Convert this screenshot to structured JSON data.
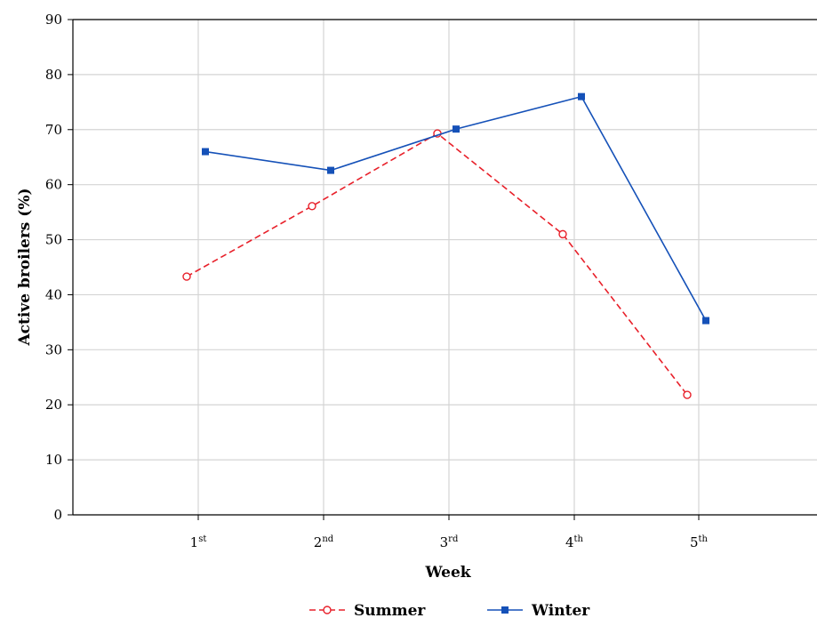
{
  "chart_data": {
    "type": "line",
    "title": "",
    "xlabel": "Week",
    "ylabel": "Active broilers (%)",
    "categories": [
      {
        "base": "1",
        "sup": "st"
      },
      {
        "base": "2",
        "sup": "nd"
      },
      {
        "base": "3",
        "sup": "rd"
      },
      {
        "base": "4",
        "sup": "th"
      },
      {
        "base": "5",
        "sup": "th"
      }
    ],
    "ylim": [
      0,
      90
    ],
    "yticks": [
      0,
      10,
      20,
      30,
      40,
      50,
      60,
      70,
      80,
      90
    ],
    "grid": true,
    "legend_position": "bottom-center",
    "series": [
      {
        "name": "Summer",
        "values": [
          43.3,
          56.1,
          69.3,
          51.0,
          21.8
        ],
        "color": "#e8202a",
        "line_style": "dashed",
        "marker": "open-circle"
      },
      {
        "name": "Winter",
        "values": [
          66.0,
          62.6,
          70.1,
          76.0,
          35.3
        ],
        "color": "#1551b8",
        "line_style": "solid",
        "marker": "filled-square"
      }
    ]
  }
}
